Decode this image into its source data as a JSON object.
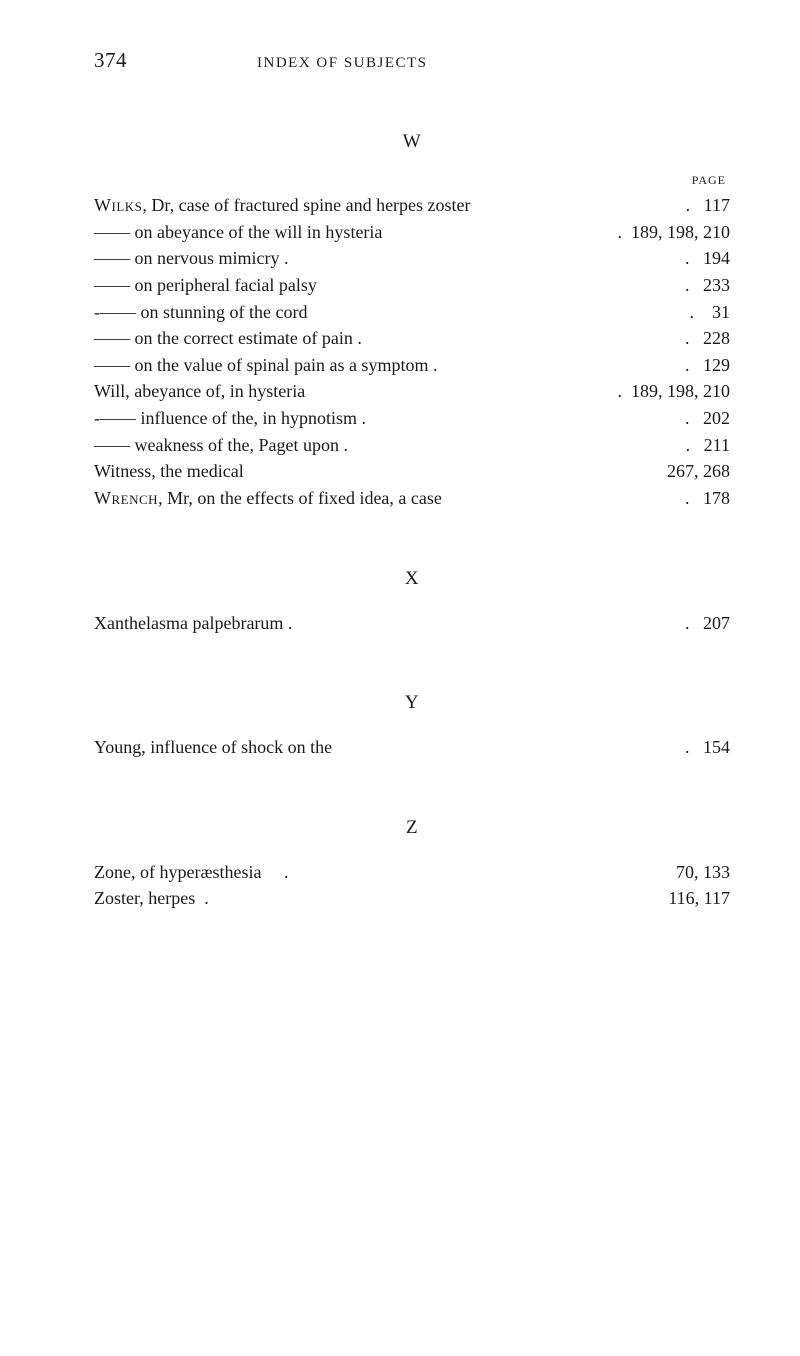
{
  "header": {
    "page_number": "374",
    "title": "INDEX OF SUBJECTS"
  },
  "page_label": "PAGE",
  "sections": [
    {
      "letter": "W",
      "entries": [
        {
          "text": "Wilks, Dr, case of fractured spine and herpes zoster",
          "smallcaps_word": "Wilks",
          "pages": ".   117",
          "indent": 0
        },
        {
          "text": "—— on abeyance of the will in hysteria",
          "pages": ".  189, 198, 210",
          "indent": 0
        },
        {
          "text": "—— on nervous mimicry .",
          "pages": ".   194",
          "indent": 0
        },
        {
          "text": "—— on peripheral facial palsy",
          "pages": ".   233",
          "indent": 0
        },
        {
          "text": "-—— on stunning of the cord",
          "pages": ".    31",
          "indent": 0
        },
        {
          "text": "—— on the correct estimate of pain .",
          "pages": ".   228",
          "indent": 0
        },
        {
          "text": "—— on the value of spinal pain as a symptom .",
          "pages": ".   129",
          "indent": 0
        },
        {
          "text": "Will, abeyance of, in hysteria",
          "pages": ".  189, 198, 210",
          "indent": 0
        },
        {
          "text": "-—— influence of the, in hypnotism .",
          "pages": ".   202",
          "indent": 0
        },
        {
          "text": "—— weakness of the, Paget upon .",
          "pages": ".   211",
          "indent": 0
        },
        {
          "text": "Witness, the medical",
          "pages": "267, 268",
          "indent": 0
        },
        {
          "text": "Wrench, Mr, on the effects of fixed idea, a case",
          "smallcaps_word": "Wrench",
          "pages": ".   178",
          "indent": 0
        }
      ]
    },
    {
      "letter": "X",
      "entries": [
        {
          "text": "Xanthelasma palpebrarum .",
          "pages": ".   207",
          "indent": 0
        }
      ]
    },
    {
      "letter": "Y",
      "entries": [
        {
          "text": "Young, influence of shock on the",
          "pages": ".   154",
          "indent": 0
        }
      ]
    },
    {
      "letter": "Z",
      "entries": [
        {
          "text": "Zone, of hyperæsthesia     .",
          "pages": "70, 133",
          "indent": 0
        },
        {
          "text": "Zoster, herpes  .",
          "pages": "116, 117",
          "indent": 0
        }
      ]
    }
  ]
}
